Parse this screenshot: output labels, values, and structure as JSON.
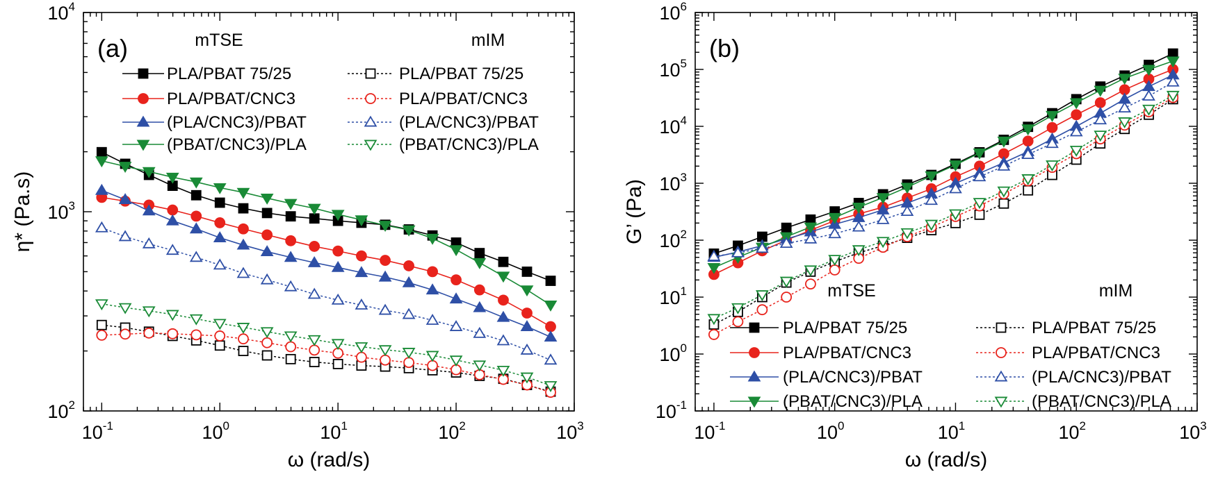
{
  "chart_data": [
    {
      "type": "line",
      "panel_label": "(a)",
      "xlabel": "ω (rad/s)",
      "ylabel": "η* (Pa.s)",
      "xscale": "log",
      "yscale": "log",
      "xlim": [
        0.07,
        1000
      ],
      "ylim": [
        100,
        10000
      ],
      "x_ticks": [
        {
          "base": "10",
          "exp": "-1"
        },
        {
          "base": "10",
          "exp": "0"
        },
        {
          "base": "10",
          "exp": "1"
        },
        {
          "base": "10",
          "exp": "2"
        },
        {
          "base": "10",
          "exp": "3"
        }
      ],
      "y_ticks": [
        {
          "base": "10",
          "exp": "2"
        },
        {
          "base": "10",
          "exp": "3"
        },
        {
          "base": "10",
          "exp": "4"
        }
      ],
      "legend_headers": {
        "left": "mTSE",
        "right": "mIM"
      },
      "legend_position": "top",
      "x": [
        0.1,
        0.158,
        0.251,
        0.398,
        0.631,
        1,
        1.58,
        2.51,
        3.98,
        6.31,
        10,
        15.8,
        25.1,
        39.8,
        63.1,
        100,
        158,
        251,
        398,
        631
      ],
      "series": [
        {
          "name": "PLA/PBAT 75/25",
          "group": "mTSE",
          "color": "#000000",
          "marker": "square",
          "filled": true,
          "dash": false,
          "values": [
            1990,
            1740,
            1530,
            1350,
            1210,
            1110,
            1040,
            985,
            948,
            925,
            900,
            880,
            860,
            815,
            760,
            700,
            620,
            560,
            500,
            450
          ]
        },
        {
          "name": "PLA/PBAT/CNC3",
          "group": "mTSE",
          "color": "#e8231c",
          "marker": "circle",
          "filled": true,
          "dash": false,
          "values": [
            1180,
            1130,
            1080,
            1020,
            950,
            880,
            820,
            765,
            715,
            670,
            635,
            600,
            570,
            535,
            500,
            455,
            405,
            360,
            310,
            265
          ]
        },
        {
          "name": "(PLA/CNC3)/PBAT",
          "group": "mTSE",
          "color": "#2e4fa6",
          "marker": "triangle-up",
          "filled": true,
          "dash": false,
          "values": [
            1280,
            1150,
            1010,
            900,
            820,
            740,
            680,
            630,
            590,
            555,
            525,
            495,
            470,
            440,
            405,
            365,
            330,
            295,
            265,
            235
          ]
        },
        {
          "name": "(PBAT/CNC3)/PLA",
          "group": "mTSE",
          "color": "#198a36",
          "marker": "triangle-down",
          "filled": true,
          "dash": false,
          "values": [
            1800,
            1690,
            1590,
            1490,
            1410,
            1320,
            1250,
            1170,
            1100,
            1040,
            970,
            910,
            855,
            810,
            735,
            645,
            555,
            475,
            405,
            340
          ]
        },
        {
          "name": "PLA/PBAT 75/25",
          "group": "mIM",
          "color": "#000000",
          "marker": "square",
          "filled": false,
          "dash": true,
          "values": [
            270,
            262,
            250,
            238,
            226,
            213,
            200,
            190,
            182,
            176,
            172,
            169,
            167,
            164,
            160,
            156,
            150,
            145,
            135,
            125
          ]
        },
        {
          "name": "PLA/PBAT/CNC3",
          "group": "mIM",
          "color": "#e8231c",
          "marker": "circle",
          "filled": false,
          "dash": true,
          "values": [
            240,
            243,
            246,
            244,
            241,
            238,
            230,
            220,
            210,
            202,
            195,
            186,
            180,
            175,
            169,
            161,
            152,
            144,
            135,
            124
          ]
        },
        {
          "name": "(PLA/CNC3)/PBAT",
          "group": "mIM",
          "color": "#2e4fa6",
          "marker": "triangle-up",
          "filled": false,
          "dash": true,
          "values": [
            830,
            750,
            690,
            640,
            590,
            540,
            490,
            455,
            420,
            385,
            360,
            340,
            320,
            305,
            285,
            265,
            245,
            225,
            202,
            180
          ]
        },
        {
          "name": "(PBAT/CNC3)/PLA",
          "group": "mIM",
          "color": "#198a36",
          "marker": "triangle-down",
          "filled": false,
          "dash": true,
          "values": [
            345,
            330,
            318,
            305,
            290,
            275,
            263,
            250,
            238,
            228,
            218,
            210,
            203,
            197,
            190,
            180,
            170,
            160,
            148,
            134
          ]
        }
      ]
    },
    {
      "type": "line",
      "panel_label": "(b)",
      "xlabel": "ω (rad/s)",
      "ylabel": "G’ (Pa)",
      "xscale": "log",
      "yscale": "log",
      "xlim": [
        0.07,
        1000
      ],
      "ylim": [
        0.1,
        1000000
      ],
      "x_ticks": [
        {
          "base": "10",
          "exp": "-1"
        },
        {
          "base": "10",
          "exp": "0"
        },
        {
          "base": "10",
          "exp": "1"
        },
        {
          "base": "10",
          "exp": "2"
        },
        {
          "base": "10",
          "exp": "3"
        }
      ],
      "y_ticks": [
        {
          "base": "10",
          "exp": "-1"
        },
        {
          "base": "10",
          "exp": "0"
        },
        {
          "base": "10",
          "exp": "1"
        },
        {
          "base": "10",
          "exp": "2"
        },
        {
          "base": "10",
          "exp": "3"
        },
        {
          "base": "10",
          "exp": "4"
        },
        {
          "base": "10",
          "exp": "5"
        },
        {
          "base": "10",
          "exp": "6"
        }
      ],
      "legend_headers": {
        "left": "mTSE",
        "right": "mIM"
      },
      "legend_position": "bottom-right",
      "x": [
        0.1,
        0.158,
        0.251,
        0.398,
        0.631,
        1,
        1.58,
        2.51,
        3.98,
        6.31,
        10,
        15.8,
        25.1,
        39.8,
        63.1,
        100,
        158,
        251,
        398,
        631
      ],
      "series": [
        {
          "name": "PLA/PBAT 75/25",
          "group": "mTSE",
          "color": "#000000",
          "marker": "square",
          "filled": true,
          "dash": false,
          "values": [
            58,
            80,
            115,
            165,
            230,
            320,
            450,
            640,
            950,
            1400,
            2200,
            3500,
            5800,
            9800,
            17000,
            30000,
            50000,
            78000,
            120000,
            190000
          ]
        },
        {
          "name": "PLA/PBAT/CNC3",
          "group": "mTSE",
          "color": "#e8231c",
          "marker": "circle",
          "filled": true,
          "dash": false,
          "values": [
            25,
            40,
            65,
            100,
            150,
            220,
            290,
            380,
            550,
            800,
            1300,
            2000,
            3300,
            5500,
            9500,
            16000,
            26000,
            44000,
            68000,
            100000
          ]
        },
        {
          "name": "(PLA/CNC3)/PBAT",
          "group": "mTSE",
          "color": "#2e4fa6",
          "marker": "triangle-up",
          "filled": true,
          "dash": false,
          "values": [
            50,
            62,
            80,
            105,
            140,
            190,
            250,
            340,
            450,
            650,
            1000,
            1500,
            2300,
            3600,
            6000,
            10000,
            17000,
            30000,
            50000,
            80000
          ]
        },
        {
          "name": "(PBAT/CNC3)/PLA",
          "group": "mTSE",
          "color": "#198a36",
          "marker": "triangle-down",
          "filled": true,
          "dash": false,
          "values": [
            33,
            50,
            75,
            115,
            170,
            250,
            380,
            560,
            850,
            1350,
            2100,
            3400,
            5500,
            9000,
            15500,
            26000,
            43000,
            70000,
            100000,
            140000
          ]
        },
        {
          "name": "PLA/PBAT 75/25",
          "group": "mIM",
          "color": "#000000",
          "marker": "square",
          "filled": false,
          "dash": true,
          "values": [
            3.3,
            5.5,
            10,
            18,
            28,
            42,
            60,
            80,
            110,
            150,
            200,
            280,
            440,
            750,
            1400,
            2600,
            5000,
            9000,
            16000,
            30000
          ]
        },
        {
          "name": "PLA/PBAT/CNC3",
          "group": "mIM",
          "color": "#e8231c",
          "marker": "circle",
          "filled": false,
          "dash": true,
          "values": [
            2.2,
            3.7,
            6,
            10,
            17,
            30,
            48,
            75,
            115,
            170,
            260,
            400,
            650,
            1100,
            1900,
            3300,
            6000,
            10500,
            18000,
            32000
          ]
        },
        {
          "name": "(PLA/CNC3)/PBAT",
          "group": "mIM",
          "color": "#2e4fa6",
          "marker": "triangle-up",
          "filled": false,
          "dash": true,
          "values": [
            52,
            60,
            72,
            88,
            105,
            130,
            170,
            230,
            320,
            500,
            800,
            1300,
            2000,
            3200,
            5000,
            8000,
            13000,
            21000,
            34000,
            60000
          ]
        },
        {
          "name": "(PBAT/CNC3)/PLA",
          "group": "mIM",
          "color": "#198a36",
          "marker": "triangle-down",
          "filled": false,
          "dash": true,
          "values": [
            4.2,
            6.5,
            11,
            19,
            30,
            46,
            68,
            95,
            135,
            190,
            290,
            460,
            730,
            1200,
            2100,
            3800,
            7000,
            12000,
            20000,
            35000
          ]
        }
      ]
    }
  ]
}
